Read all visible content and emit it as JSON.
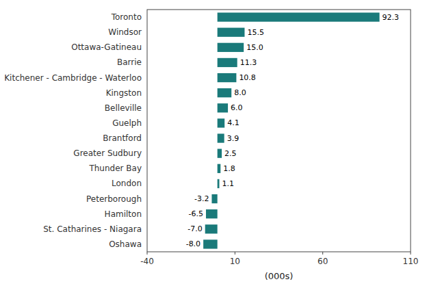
{
  "chart_data": {
    "type": "bar",
    "orientation": "horizontal",
    "categories": [
      "Oshawa",
      "St. Catharines - Niagara",
      "Hamilton",
      "Peterborough",
      "London",
      "Thunder Bay",
      "Greater Sudbury",
      "Brantford",
      "Guelph",
      "Belleville",
      "Kingston",
      "Kitchener - Cambridge - Waterloo",
      "Barrie",
      "Ottawa-Gatineau",
      "Windsor",
      "Toronto"
    ],
    "values": [
      -8.0,
      -7.0,
      -6.5,
      -3.2,
      1.1,
      1.8,
      2.5,
      3.9,
      4.1,
      6.0,
      8.0,
      10.8,
      11.3,
      15.0,
      15.5,
      92.3
    ],
    "value_labels": [
      "-8.0",
      "-7.0",
      "-6.5",
      "-3.2",
      "1.1",
      "1.8",
      "2.5",
      "3.9",
      "4.1",
      "6.0",
      "8.0",
      "10.8",
      "11.3",
      "15.0",
      "15.5",
      "92.3"
    ],
    "data_labels": true,
    "color": "#1a7a7a",
    "xlabel": "(000s)",
    "xlim": [
      -40,
      110
    ],
    "xticks": [
      -40,
      10,
      60,
      110
    ],
    "grid": false
  }
}
